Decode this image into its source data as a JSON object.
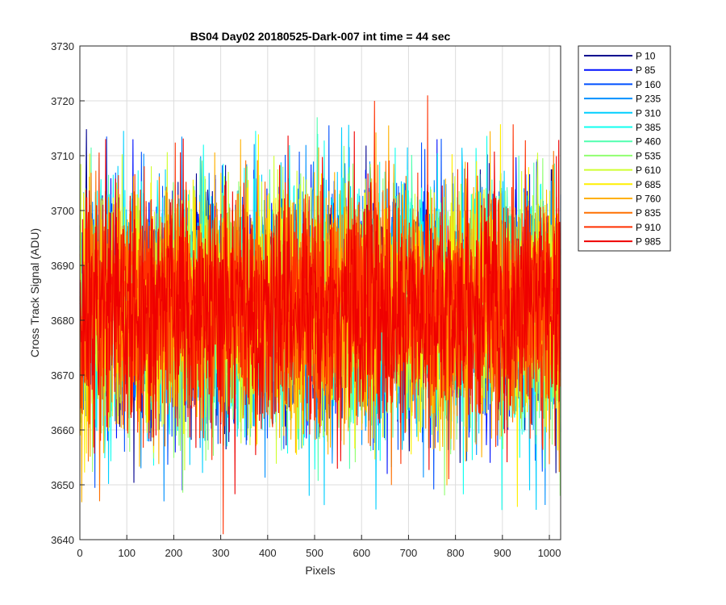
{
  "chart_data": {
    "type": "line",
    "title": "BS04 Day02 20180525-Dark-007 int time = 44 sec",
    "xlabel": "Pixels",
    "ylabel": "Cross Track Signal (ADU)",
    "xlim": [
      0,
      1024
    ],
    "ylim": [
      3640,
      3730
    ],
    "xticks": [
      0,
      100,
      200,
      300,
      400,
      500,
      600,
      700,
      800,
      900,
      1000
    ],
    "yticks": [
      3640,
      3650,
      3660,
      3670,
      3680,
      3690,
      3700,
      3710,
      3720,
      3730
    ],
    "grid": true,
    "legend_location": "outside-top-right",
    "noise_model": {
      "mean": 3682,
      "typical_range": [
        3660,
        3705
      ],
      "n_points": 1024
    },
    "series": [
      {
        "name": "P 10",
        "color": "#00008f"
      },
      {
        "name": "P 85",
        "color": "#0010ff"
      },
      {
        "name": "P 160",
        "color": "#0050ff"
      },
      {
        "name": "P 235",
        "color": "#0090ff"
      },
      {
        "name": "P 310",
        "color": "#00cfff"
      },
      {
        "name": "P 385",
        "color": "#10ffef"
      },
      {
        "name": "P 460",
        "color": "#50ffaf"
      },
      {
        "name": "P 535",
        "color": "#90ff70"
      },
      {
        "name": "P 610",
        "color": "#cfff30"
      },
      {
        "name": "P 685",
        "color": "#ffef00"
      },
      {
        "name": "P 760",
        "color": "#ffb000"
      },
      {
        "name": "P 835",
        "color": "#ff7000"
      },
      {
        "name": "P 910",
        "color": "#ff3000"
      },
      {
        "name": "P 985",
        "color": "#ef0000"
      }
    ],
    "notable_spikes": [
      {
        "series": "P 910",
        "x": 305,
        "y": 3641
      },
      {
        "series": "P 835",
        "x": 42,
        "y": 3647
      },
      {
        "series": "P 910",
        "x": 627,
        "y": 3720
      },
      {
        "series": "P 910",
        "x": 740,
        "y": 3721
      },
      {
        "series": "P 85",
        "x": 113,
        "y": 3713
      },
      {
        "series": "P 85",
        "x": 760,
        "y": 3713
      },
      {
        "series": "P 460",
        "x": 505,
        "y": 3717
      },
      {
        "series": "P 310",
        "x": 488,
        "y": 3648
      },
      {
        "series": "P 310",
        "x": 957,
        "y": 3649
      },
      {
        "series": "P 85",
        "x": 218,
        "y": 3649
      },
      {
        "series": "P 535",
        "x": 1022,
        "y": 3648
      }
    ]
  }
}
